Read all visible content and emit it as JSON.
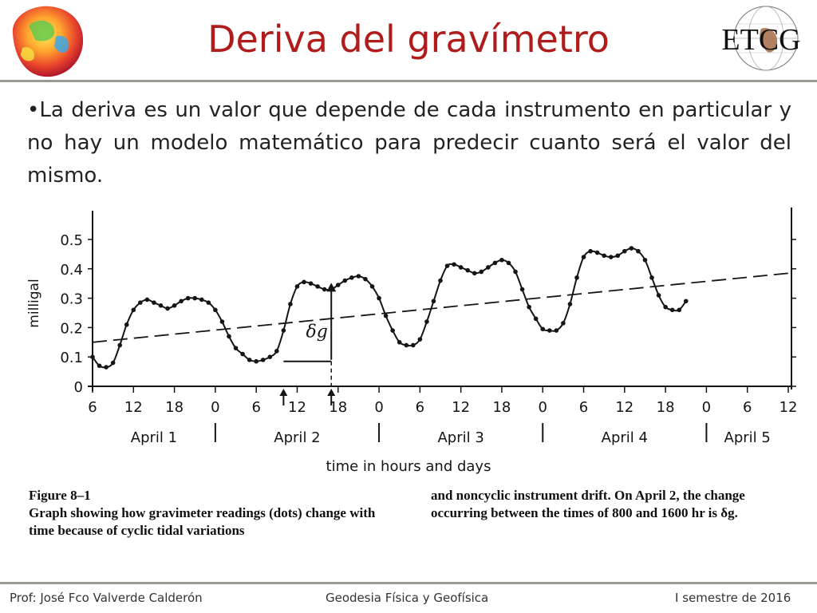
{
  "slide": {
    "title": "Deriva del gravímetro",
    "bullet": "•La deriva es un valor que depende de cada instrumento en particular y no hay un modelo matemático para predecir cuanto será el valor del mismo.",
    "logo_text": "ETCG"
  },
  "figure": {
    "label": "Figure 8–1",
    "caption_left": "Graph showing how gravimeter readings (dots) change with time because of cyclic tidal variations",
    "caption_right": "and noncyclic instrument drift. On April 2, the change occurring between the times of 800 and 1600 hr is δg."
  },
  "chart_data": {
    "type": "line",
    "ylabel": "milligal",
    "xlabel": "time in hours and days",
    "ylim": [
      0,
      0.5
    ],
    "y_ticks": [
      "0",
      "0.1",
      "0.2",
      "0.3",
      "0.4",
      "0.5"
    ],
    "x_range_hours": [
      6,
      108
    ],
    "x_ticks": [
      {
        "h": 6,
        "label": "6"
      },
      {
        "h": 12,
        "label": "12"
      },
      {
        "h": 18,
        "label": "18"
      },
      {
        "h": 24,
        "label": "0"
      },
      {
        "h": 30,
        "label": "6"
      },
      {
        "h": 36,
        "label": "12"
      },
      {
        "h": 42,
        "label": "18"
      },
      {
        "h": 48,
        "label": "0"
      },
      {
        "h": 54,
        "label": "6"
      },
      {
        "h": 60,
        "label": "12"
      },
      {
        "h": 66,
        "label": "18"
      },
      {
        "h": 72,
        "label": "0"
      },
      {
        "h": 78,
        "label": "6"
      },
      {
        "h": 84,
        "label": "12"
      },
      {
        "h": 90,
        "label": "18"
      },
      {
        "h": 96,
        "label": "0"
      },
      {
        "h": 102,
        "label": "6"
      },
      {
        "h": 108,
        "label": "12"
      }
    ],
    "days": [
      {
        "label": "April 1",
        "center": 15
      },
      {
        "label": "April 2",
        "center": 36
      },
      {
        "label": "April 3",
        "center": 60
      },
      {
        "label": "April 4",
        "center": 84
      },
      {
        "label": "April 5",
        "center": 102
      }
    ],
    "day_dividers": [
      24,
      48,
      72,
      96
    ],
    "series": [
      {
        "type": "readings",
        "points": [
          [
            6,
            0.1
          ],
          [
            7,
            0.07
          ],
          [
            8,
            0.065
          ],
          [
            9,
            0.08
          ],
          [
            10,
            0.14
          ],
          [
            11,
            0.21
          ],
          [
            12,
            0.26
          ],
          [
            13,
            0.285
          ],
          [
            14,
            0.295
          ],
          [
            15,
            0.285
          ],
          [
            16,
            0.275
          ],
          [
            17,
            0.265
          ],
          [
            18,
            0.275
          ],
          [
            19,
            0.29
          ],
          [
            20,
            0.3
          ],
          [
            21,
            0.3
          ],
          [
            22,
            0.295
          ],
          [
            23,
            0.285
          ],
          [
            24,
            0.26
          ],
          [
            25,
            0.22
          ],
          [
            26,
            0.17
          ],
          [
            27,
            0.13
          ],
          [
            28,
            0.11
          ],
          [
            29,
            0.09
          ],
          [
            30,
            0.085
          ],
          [
            31,
            0.09
          ],
          [
            32,
            0.1
          ],
          [
            33,
            0.12
          ],
          [
            34,
            0.19
          ],
          [
            35,
            0.28
          ],
          [
            36,
            0.34
          ],
          [
            37,
            0.355
          ],
          [
            38,
            0.35
          ],
          [
            39,
            0.34
          ],
          [
            40,
            0.33
          ],
          [
            41,
            0.33
          ],
          [
            42,
            0.345
          ],
          [
            43,
            0.36
          ],
          [
            44,
            0.37
          ],
          [
            45,
            0.375
          ],
          [
            46,
            0.365
          ],
          [
            47,
            0.34
          ],
          [
            48,
            0.3
          ],
          [
            49,
            0.24
          ],
          [
            50,
            0.19
          ],
          [
            51,
            0.15
          ],
          [
            52,
            0.14
          ],
          [
            53,
            0.14
          ],
          [
            54,
            0.16
          ],
          [
            55,
            0.22
          ],
          [
            56,
            0.29
          ],
          [
            57,
            0.36
          ],
          [
            58,
            0.41
          ],
          [
            59,
            0.415
          ],
          [
            60,
            0.405
          ],
          [
            61,
            0.395
          ],
          [
            62,
            0.385
          ],
          [
            63,
            0.39
          ],
          [
            64,
            0.405
          ],
          [
            65,
            0.42
          ],
          [
            66,
            0.43
          ],
          [
            67,
            0.42
          ],
          [
            68,
            0.39
          ],
          [
            69,
            0.33
          ],
          [
            70,
            0.27
          ],
          [
            71,
            0.23
          ],
          [
            72,
            0.195
          ],
          [
            73,
            0.19
          ],
          [
            74,
            0.19
          ],
          [
            75,
            0.215
          ],
          [
            76,
            0.28
          ],
          [
            77,
            0.37
          ],
          [
            78,
            0.44
          ],
          [
            79,
            0.46
          ],
          [
            80,
            0.455
          ],
          [
            81,
            0.445
          ],
          [
            82,
            0.44
          ],
          [
            83,
            0.445
          ],
          [
            84,
            0.46
          ],
          [
            85,
            0.47
          ],
          [
            86,
            0.46
          ],
          [
            87,
            0.43
          ],
          [
            88,
            0.37
          ],
          [
            89,
            0.31
          ],
          [
            90,
            0.27
          ],
          [
            91,
            0.26
          ],
          [
            92,
            0.26
          ],
          [
            93,
            0.29
          ]
        ]
      },
      {
        "type": "drift",
        "points": [
          [
            6,
            0.15
          ],
          [
            108,
            0.385
          ]
        ]
      }
    ],
    "annotation": {
      "label": "δg",
      "from": [
        34,
        0.085
      ],
      "to": [
        41,
        0.355
      ],
      "mark_at": [
        34,
        41
      ]
    }
  },
  "footer": {
    "left": "Prof: José Fco Valverde Calderón",
    "center": "Geodesia Física y Geofísica",
    "right": "I semestre de 2016"
  }
}
